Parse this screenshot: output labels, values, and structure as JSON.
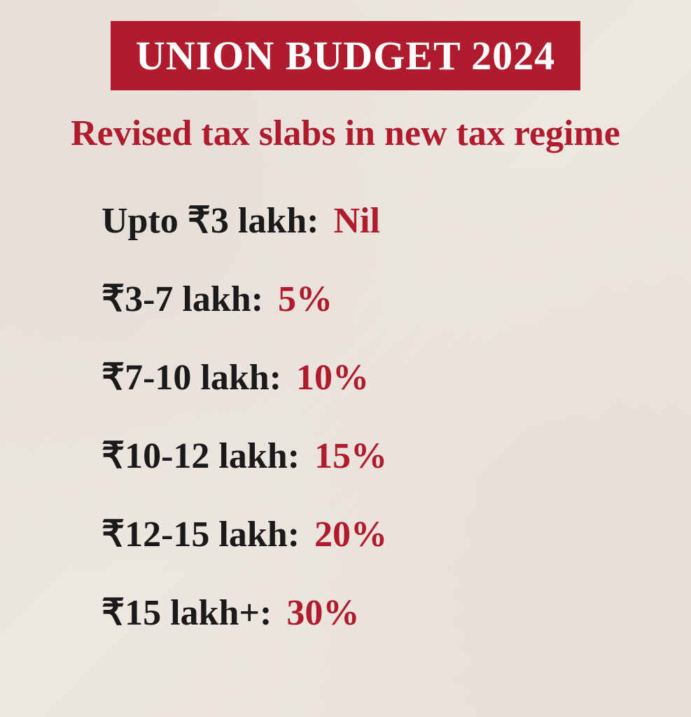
{
  "header": {
    "title": "UNION BUDGET 2024",
    "title_bg_color": "#b01c2e",
    "title_text_color": "#ffffff",
    "title_fontsize": 58
  },
  "subtitle": {
    "text": "Revised tax slabs in new tax regime",
    "color": "#b01c2e",
    "fontsize": 52
  },
  "slabs": {
    "type": "list",
    "range_color": "#1a1a1a",
    "rate_color": "#b01c2e",
    "fontsize": 52,
    "items": [
      {
        "range": "Upto ₹3 lakh:",
        "rate": "Nil"
      },
      {
        "range": "₹3-7 lakh:",
        "rate": "5%"
      },
      {
        "range": "₹7-10 lakh:",
        "rate": "10%"
      },
      {
        "range": "₹10-12 lakh:",
        "rate": "15%"
      },
      {
        "range": "₹12-15 lakh:",
        "rate": "20%"
      },
      {
        "range": "₹15 lakh+:",
        "rate": "30%"
      }
    ]
  },
  "background_color": "#e9e2dc"
}
